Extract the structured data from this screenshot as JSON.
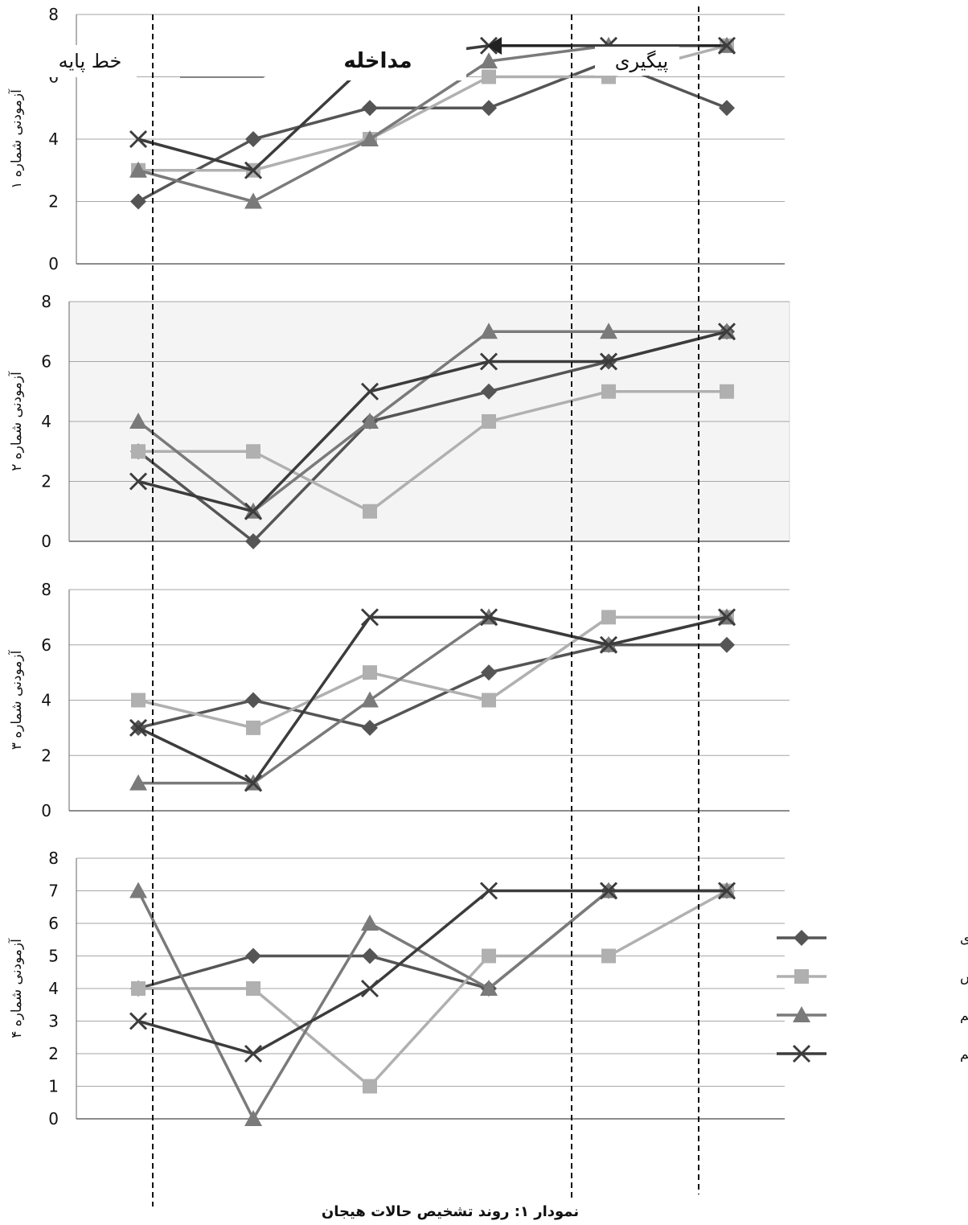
{
  "caption": "نمودار ۱: روند تشخیص حالات هیجان",
  "phases": {
    "baseline": "خط پایه",
    "intervention": "مداخله",
    "followup": "پیگیری"
  },
  "colors": {
    "happy": "#555555",
    "fear": "#b0b0b0",
    "anger": "#7a7a7a",
    "sad": "#3c3c3c"
  },
  "chart_data": [
    {
      "type": "line",
      "ylabel": "آزمودنی شماره ۱",
      "ylim": [
        0,
        8
      ],
      "yticks": [
        "0",
        "2",
        "4",
        "6",
        "8"
      ],
      "x": [
        1,
        2,
        3,
        4,
        5,
        6
      ],
      "grid": true,
      "series": [
        {
          "name": "حالت هیجانی شادی",
          "marker": "diamond",
          "values": [
            2,
            4,
            5,
            5,
            6.5,
            5
          ]
        },
        {
          "name": "حالت هیجانی ترس",
          "marker": "square",
          "values": [
            3,
            3,
            4,
            6,
            6,
            7
          ]
        },
        {
          "name": "حالت هیجانی خشم",
          "marker": "triangle",
          "values": [
            3,
            2,
            4,
            6.5,
            7,
            7
          ]
        },
        {
          "name": "حالت هیجانی غم",
          "marker": "x",
          "values": [
            4,
            3,
            6.5,
            7,
            7,
            7
          ]
        }
      ]
    },
    {
      "type": "line",
      "ylabel": "آزمودنی شماره ۲",
      "ylim": [
        0,
        8
      ],
      "yticks": [
        "0",
        "2",
        "4",
        "6",
        "8"
      ],
      "x": [
        1,
        2,
        3,
        4,
        5,
        6
      ],
      "grid": true,
      "series": [
        {
          "name": "حالت هیجانی شادی",
          "marker": "diamond",
          "values": [
            3,
            0,
            4,
            5,
            6,
            7
          ]
        },
        {
          "name": "حالت هیجانی ترس",
          "marker": "square",
          "values": [
            3,
            3,
            1,
            4,
            5,
            5
          ]
        },
        {
          "name": "حالت هیجانی خشم",
          "marker": "triangle",
          "values": [
            4,
            1,
            4,
            7,
            7,
            7
          ]
        },
        {
          "name": "حالت هیجانی غم",
          "marker": "x",
          "values": [
            2,
            1,
            5,
            6,
            6,
            7
          ]
        }
      ]
    },
    {
      "type": "line",
      "ylabel": "آزمودنی شماره ۳",
      "ylim": [
        0,
        8
      ],
      "yticks": [
        "0",
        "2",
        "4",
        "6",
        "8"
      ],
      "x": [
        1,
        2,
        3,
        4,
        5,
        6
      ],
      "grid": true,
      "series": [
        {
          "name": "حالت هیجانی شادی",
          "marker": "diamond",
          "values": [
            3,
            4,
            3,
            5,
            6,
            6
          ]
        },
        {
          "name": "حالت هیجانی ترس",
          "marker": "square",
          "values": [
            4,
            3,
            5,
            4,
            7,
            7
          ]
        },
        {
          "name": "حالت هیجانی خشم",
          "marker": "triangle",
          "values": [
            1,
            1,
            4,
            7,
            6,
            7
          ]
        },
        {
          "name": "حالت هیجانی غم",
          "marker": "x",
          "values": [
            3,
            1,
            7,
            7,
            6,
            7
          ]
        }
      ]
    },
    {
      "type": "line",
      "ylabel": "آزمودنی شماره ۴",
      "ylim": [
        0,
        8
      ],
      "yticks": [
        "0",
        "1",
        "2",
        "3",
        "4",
        "5",
        "6",
        "7",
        "8"
      ],
      "x": [
        1,
        2,
        3,
        4,
        5,
        6
      ],
      "grid": true,
      "legend": "right",
      "series": [
        {
          "name": "حالت هیجانی شادی",
          "marker": "diamond",
          "values": [
            4,
            5,
            5,
            4,
            7,
            7
          ]
        },
        {
          "name": "حالت هیجانی ترس",
          "marker": "square",
          "values": [
            4,
            4,
            1,
            5,
            5,
            7
          ]
        },
        {
          "name": "حالت هیجانی خشم",
          "marker": "triangle",
          "values": [
            7,
            0,
            6,
            4,
            7,
            7
          ]
        },
        {
          "name": "حالت هیجانی غم",
          "marker": "x",
          "values": [
            3,
            2,
            4,
            7,
            7,
            7
          ]
        }
      ]
    }
  ]
}
